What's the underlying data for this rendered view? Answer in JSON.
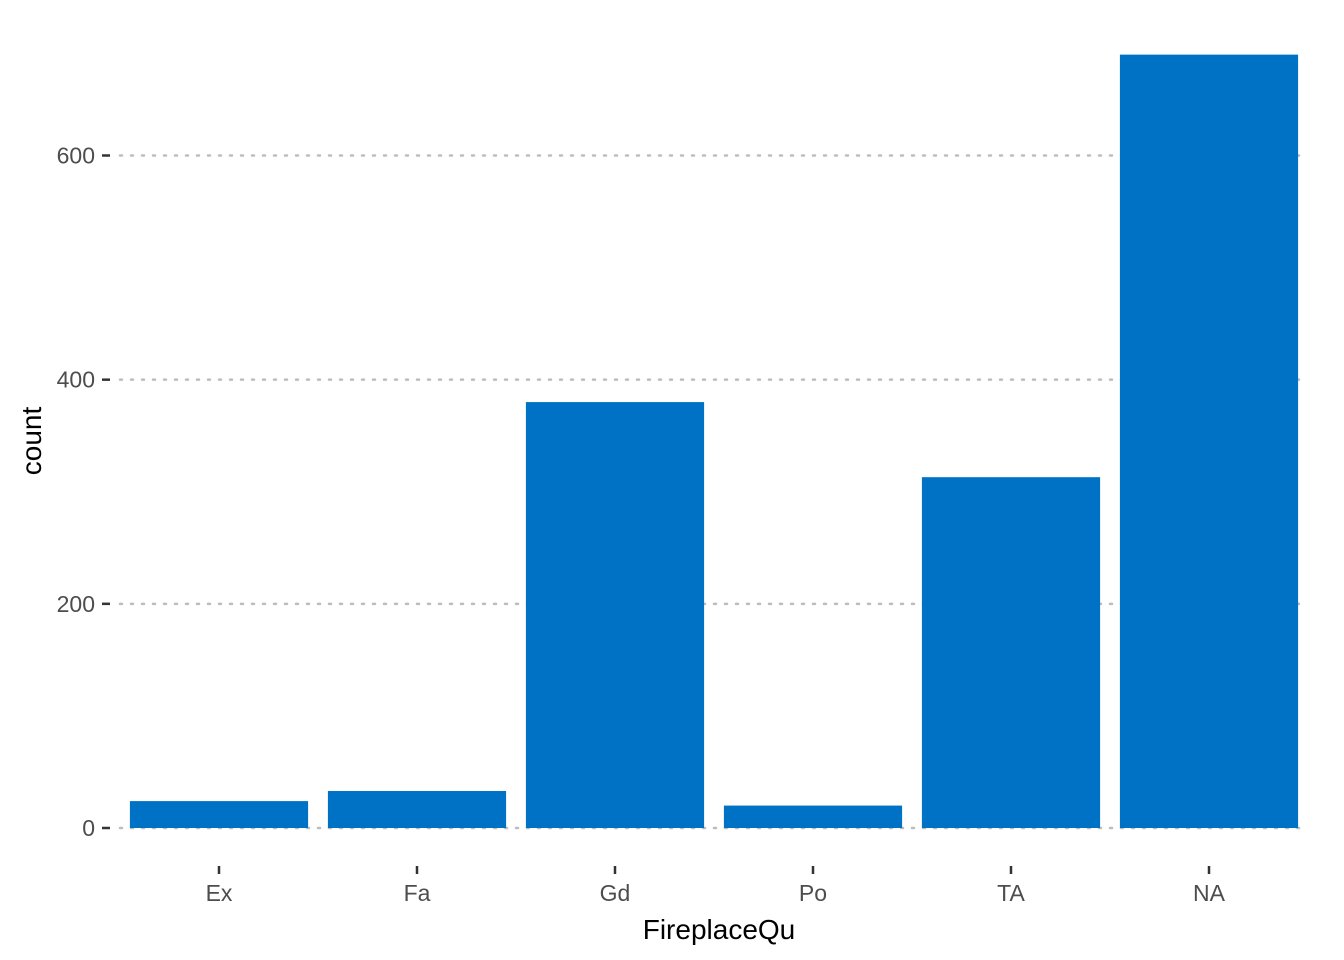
{
  "chart_data": {
    "type": "bar",
    "title": "",
    "xlabel": "FireplaceQu",
    "ylabel": "count",
    "categories": [
      "Ex",
      "Fa",
      "Gd",
      "Po",
      "TA",
      "NA"
    ],
    "values": [
      24,
      33,
      380,
      20,
      313,
      690
    ],
    "ylim": [
      0,
      690
    ],
    "yticks": [
      0,
      200,
      400,
      600
    ],
    "grid": "horizontal-dotted",
    "legend": "none",
    "colors": {
      "bar": "#0072c6",
      "grid": "#bdbdbd",
      "tick_text": "#4d4d4d",
      "axis_title": "#000000"
    }
  }
}
